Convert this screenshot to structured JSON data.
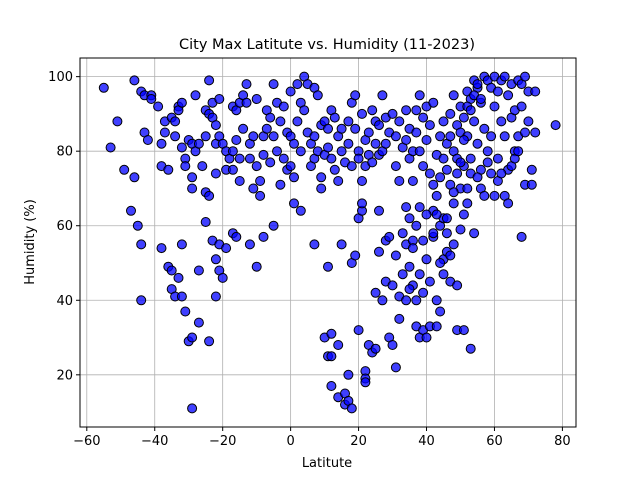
{
  "chart_data": {
    "type": "scatter",
    "title": "City Max Latitute vs. Humidity (11-2023)",
    "xlabel": "Latitute",
    "ylabel": "Humidity (%)",
    "xlim": [
      -62,
      84
    ],
    "ylim": [
      6,
      105
    ],
    "xticks": [
      -60,
      -40,
      -20,
      0,
      20,
      40,
      60,
      80
    ],
    "yticks": [
      20,
      40,
      60,
      80,
      100
    ],
    "grid": true,
    "colors": {
      "fill": "#0000ff",
      "edge": "#000000",
      "grid": "#b0b0b0"
    },
    "points": [
      [
        -55,
        97
      ],
      [
        -53,
        81
      ],
      [
        -51,
        88
      ],
      [
        -49,
        75
      ],
      [
        -47,
        64
      ],
      [
        -46,
        73
      ],
      [
        -45,
        60
      ],
      [
        -46,
        99
      ],
      [
        -44,
        96
      ],
      [
        -43,
        95
      ],
      [
        -43,
        85
      ],
      [
        -42,
        83
      ],
      [
        -41,
        95
      ],
      [
        -41,
        94
      ],
      [
        -39,
        92
      ],
      [
        -38,
        82
      ],
      [
        -38,
        76
      ],
      [
        -37,
        88
      ],
      [
        -37,
        85
      ],
      [
        -36,
        75
      ],
      [
        -35,
        89
      ],
      [
        -34,
        88
      ],
      [
        -34,
        84
      ],
      [
        -33,
        92
      ],
      [
        -33,
        91
      ],
      [
        -32,
        93
      ],
      [
        -32,
        81
      ],
      [
        -31,
        78
      ],
      [
        -31,
        76
      ],
      [
        -30,
        83
      ],
      [
        -29,
        82
      ],
      [
        -29,
        73
      ],
      [
        -29,
        70
      ],
      [
        -28,
        95
      ],
      [
        -28,
        80
      ],
      [
        -27,
        82
      ],
      [
        -26,
        76
      ],
      [
        -25,
        91
      ],
      [
        -25,
        84
      ],
      [
        -25,
        69
      ],
      [
        -24,
        99
      ],
      [
        -24,
        90
      ],
      [
        -24,
        68
      ],
      [
        -23,
        93
      ],
      [
        -23,
        89
      ],
      [
        -22,
        87
      ],
      [
        -22,
        82
      ],
      [
        -22,
        74
      ],
      [
        -21,
        94
      ],
      [
        -21,
        84
      ],
      [
        -20,
        82
      ],
      [
        -19,
        80
      ],
      [
        -19,
        75
      ],
      [
        -18,
        78
      ],
      [
        -17,
        92
      ],
      [
        -17,
        80
      ],
      [
        -17,
        75
      ],
      [
        -16,
        91
      ],
      [
        -16,
        83
      ],
      [
        -15,
        93
      ],
      [
        -15,
        78
      ],
      [
        -15,
        72
      ],
      [
        -14,
        95
      ],
      [
        -14,
        86
      ],
      [
        -13,
        98
      ],
      [
        -13,
        93
      ],
      [
        -12,
        82
      ],
      [
        -12,
        78
      ],
      [
        -11,
        70
      ],
      [
        -11,
        84
      ],
      [
        -10,
        94
      ],
      [
        -10,
        76
      ],
      [
        -9,
        72
      ],
      [
        -9,
        68
      ],
      [
        -8,
        84
      ],
      [
        -8,
        79
      ],
      [
        -7,
        91
      ],
      [
        -7,
        86
      ],
      [
        -6,
        89
      ],
      [
        -6,
        77
      ],
      [
        -5,
        98
      ],
      [
        -5,
        84
      ],
      [
        -4,
        93
      ],
      [
        -4,
        80
      ],
      [
        -3,
        71
      ],
      [
        -3,
        88
      ],
      [
        -2,
        92
      ],
      [
        -2,
        78
      ],
      [
        -1,
        85
      ],
      [
        -1,
        75
      ],
      [
        0,
        96
      ],
      [
        0,
        84
      ],
      [
        0,
        76
      ],
      [
        1,
        82
      ],
      [
        1,
        73
      ],
      [
        2,
        98
      ],
      [
        2,
        88
      ],
      [
        3,
        93
      ],
      [
        3,
        80
      ],
      [
        4,
        100
      ],
      [
        4,
        91
      ],
      [
        5,
        98
      ],
      [
        5,
        85
      ],
      [
        6,
        82
      ],
      [
        6,
        76
      ],
      [
        7,
        97
      ],
      [
        7,
        84
      ],
      [
        7,
        78
      ],
      [
        8,
        95
      ],
      [
        8,
        80
      ],
      [
        9,
        87
      ],
      [
        9,
        73
      ],
      [
        9,
        70
      ],
      [
        10,
        88
      ],
      [
        10,
        79
      ],
      [
        11,
        86
      ],
      [
        11,
        81
      ],
      [
        12,
        91
      ],
      [
        12,
        78
      ],
      [
        13,
        89
      ],
      [
        13,
        75
      ],
      [
        14,
        84
      ],
      [
        14,
        72
      ],
      [
        15,
        86
      ],
      [
        15,
        80
      ],
      [
        16,
        77
      ],
      [
        17,
        88
      ],
      [
        17,
        82
      ],
      [
        18,
        93
      ],
      [
        18,
        76
      ],
      [
        19,
        95
      ],
      [
        19,
        86
      ],
      [
        20,
        80
      ],
      [
        20,
        78
      ],
      [
        21,
        90
      ],
      [
        21,
        72
      ],
      [
        22,
        83
      ],
      [
        22,
        76
      ],
      [
        23,
        79
      ],
      [
        23,
        85
      ],
      [
        24,
        91
      ],
      [
        24,
        77
      ],
      [
        25,
        88
      ],
      [
        25,
        82
      ],
      [
        26,
        87
      ],
      [
        26,
        79
      ],
      [
        27,
        95
      ],
      [
        27,
        80
      ],
      [
        28,
        89
      ],
      [
        28,
        82
      ],
      [
        29,
        85
      ],
      [
        30,
        90
      ],
      [
        31,
        84
      ],
      [
        31,
        76
      ],
      [
        32,
        88
      ],
      [
        32,
        72
      ],
      [
        33,
        81
      ],
      [
        34,
        91
      ],
      [
        34,
        83
      ],
      [
        35,
        86
      ],
      [
        35,
        78
      ],
      [
        36,
        80
      ],
      [
        36,
        72
      ],
      [
        37,
        91
      ],
      [
        37,
        85
      ],
      [
        38,
        95
      ],
      [
        38,
        80
      ],
      [
        39,
        89
      ],
      [
        39,
        76
      ],
      [
        40,
        92
      ],
      [
        40,
        83
      ],
      [
        41,
        87
      ],
      [
        41,
        74
      ],
      [
        42,
        93
      ],
      [
        42,
        71
      ],
      [
        43,
        79
      ],
      [
        43,
        68
      ],
      [
        44,
        84
      ],
      [
        44,
        73
      ],
      [
        45,
        88
      ],
      [
        45,
        78
      ],
      [
        46,
        82
      ],
      [
        46,
        75
      ],
      [
        47,
        90
      ],
      [
        47,
        84
      ],
      [
        48,
        95
      ],
      [
        48,
        80
      ],
      [
        49,
        87
      ],
      [
        49,
        78
      ],
      [
        50,
        92
      ],
      [
        50,
        85
      ],
      [
        51,
        89
      ],
      [
        51,
        76
      ],
      [
        52,
        96
      ],
      [
        52,
        84
      ],
      [
        53,
        94
      ],
      [
        53,
        78
      ],
      [
        54,
        99
      ],
      [
        54,
        88
      ],
      [
        55,
        97
      ],
      [
        55,
        82
      ],
      [
        56,
        93
      ],
      [
        56,
        75
      ],
      [
        57,
        100
      ],
      [
        57,
        86
      ],
      [
        58,
        99
      ],
      [
        58,
        80
      ],
      [
        59,
        97
      ],
      [
        59,
        84
      ],
      [
        60,
        100
      ],
      [
        60,
        92
      ],
      [
        61,
        96
      ],
      [
        61,
        78
      ],
      [
        62,
        99
      ],
      [
        62,
        88
      ],
      [
        63,
        100
      ],
      [
        63,
        84
      ],
      [
        64,
        95
      ],
      [
        64,
        75
      ],
      [
        65,
        98
      ],
      [
        65,
        89
      ],
      [
        66,
        91
      ],
      [
        66,
        80
      ],
      [
        67,
        99
      ],
      [
        67,
        84
      ],
      [
        68,
        98
      ],
      [
        68,
        92
      ],
      [
        69,
        100
      ],
      [
        69,
        85
      ],
      [
        70,
        96
      ],
      [
        70,
        88
      ],
      [
        71,
        75
      ],
      [
        72,
        96
      ],
      [
        78,
        87
      ],
      [
        -44,
        55
      ],
      [
        -44,
        40
      ],
      [
        -38,
        54
      ],
      [
        -36,
        49
      ],
      [
        -35,
        48
      ],
      [
        -35,
        43
      ],
      [
        -34,
        41
      ],
      [
        -33,
        46
      ],
      [
        -32,
        41
      ],
      [
        -32,
        55
      ],
      [
        -31,
        37
      ],
      [
        -30,
        29
      ],
      [
        -29,
        30
      ],
      [
        -29,
        11
      ],
      [
        -27,
        48
      ],
      [
        -27,
        34
      ],
      [
        -25,
        61
      ],
      [
        -24,
        29
      ],
      [
        -23,
        56
      ],
      [
        -22,
        51
      ],
      [
        -22,
        41
      ],
      [
        -21,
        55
      ],
      [
        -21,
        48
      ],
      [
        -20,
        46
      ],
      [
        -19,
        54
      ],
      [
        -17,
        58
      ],
      [
        -16,
        57
      ],
      [
        -12,
        55
      ],
      [
        -10,
        49
      ],
      [
        -8,
        57
      ],
      [
        -5,
        60
      ],
      [
        1,
        66
      ],
      [
        3,
        64
      ],
      [
        7,
        55
      ],
      [
        10,
        30
      ],
      [
        11,
        25
      ],
      [
        11,
        49
      ],
      [
        12,
        31
      ],
      [
        12,
        17
      ],
      [
        12,
        25
      ],
      [
        14,
        28
      ],
      [
        14,
        14
      ],
      [
        15,
        55
      ],
      [
        16,
        12
      ],
      [
        16,
        15
      ],
      [
        17,
        13
      ],
      [
        17,
        20
      ],
      [
        18,
        11
      ],
      [
        18,
        50
      ],
      [
        19,
        52
      ],
      [
        20,
        62
      ],
      [
        20,
        32
      ],
      [
        21,
        64
      ],
      [
        21,
        66
      ],
      [
        22,
        21
      ],
      [
        22,
        19
      ],
      [
        22,
        18
      ],
      [
        23,
        28
      ],
      [
        24,
        26
      ],
      [
        25,
        27
      ],
      [
        25,
        42
      ],
      [
        26,
        64
      ],
      [
        26,
        53
      ],
      [
        27,
        40
      ],
      [
        28,
        56
      ],
      [
        28,
        45
      ],
      [
        29,
        30
      ],
      [
        29,
        57
      ],
      [
        30,
        44
      ],
      [
        30,
        28
      ],
      [
        31,
        22
      ],
      [
        31,
        52
      ],
      [
        32,
        35
      ],
      [
        32,
        41
      ],
      [
        33,
        58
      ],
      [
        33,
        47
      ],
      [
        34,
        55
      ],
      [
        34,
        65
      ],
      [
        35,
        49
      ],
      [
        35,
        62
      ],
      [
        36,
        56
      ],
      [
        36,
        44
      ],
      [
        37,
        40
      ],
      [
        37,
        33
      ],
      [
        38,
        30
      ],
      [
        38,
        47
      ],
      [
        39,
        32
      ],
      [
        39,
        42
      ],
      [
        40,
        51
      ],
      [
        40,
        30
      ],
      [
        41,
        45
      ],
      [
        41,
        33
      ],
      [
        42,
        64
      ],
      [
        42,
        57
      ],
      [
        43,
        40
      ],
      [
        43,
        33
      ],
      [
        44,
        37
      ],
      [
        44,
        60
      ],
      [
        45,
        51
      ],
      [
        45,
        62
      ],
      [
        46,
        53
      ],
      [
        46,
        58
      ],
      [
        47,
        45
      ],
      [
        47,
        52
      ],
      [
        48,
        66
      ],
      [
        48,
        55
      ],
      [
        49,
        44
      ],
      [
        49,
        32
      ],
      [
        50,
        59
      ],
      [
        50,
        70
      ],
      [
        51,
        32
      ],
      [
        51,
        63
      ],
      [
        52,
        66
      ],
      [
        52,
        70
      ],
      [
        53,
        27
      ],
      [
        53,
        74
      ],
      [
        54,
        58
      ],
      [
        55,
        73
      ],
      [
        56,
        70
      ],
      [
        57,
        68
      ],
      [
        58,
        77
      ],
      [
        59,
        74
      ],
      [
        60,
        68
      ],
      [
        61,
        72
      ],
      [
        62,
        74
      ],
      [
        63,
        68
      ],
      [
        64,
        66
      ],
      [
        65,
        76
      ],
      [
        66,
        78
      ],
      [
        67,
        80
      ],
      [
        68,
        57
      ],
      [
        69,
        71
      ],
      [
        71,
        71
      ],
      [
        72,
        85
      ],
      [
        40,
        63
      ],
      [
        39,
        56
      ],
      [
        38,
        65
      ],
      [
        37,
        60
      ],
      [
        36,
        54
      ],
      [
        35,
        43
      ],
      [
        34,
        40
      ],
      [
        42,
        58
      ],
      [
        43,
        63
      ],
      [
        44,
        50
      ],
      [
        45,
        47
      ],
      [
        46,
        62
      ],
      [
        47,
        71
      ],
      [
        48,
        69
      ],
      [
        49,
        74
      ],
      [
        50,
        77
      ],
      [
        51,
        83
      ],
      [
        52,
        92
      ],
      [
        53,
        91
      ],
      [
        54,
        95
      ],
      [
        55,
        98
      ],
      [
        56,
        94
      ]
    ]
  }
}
